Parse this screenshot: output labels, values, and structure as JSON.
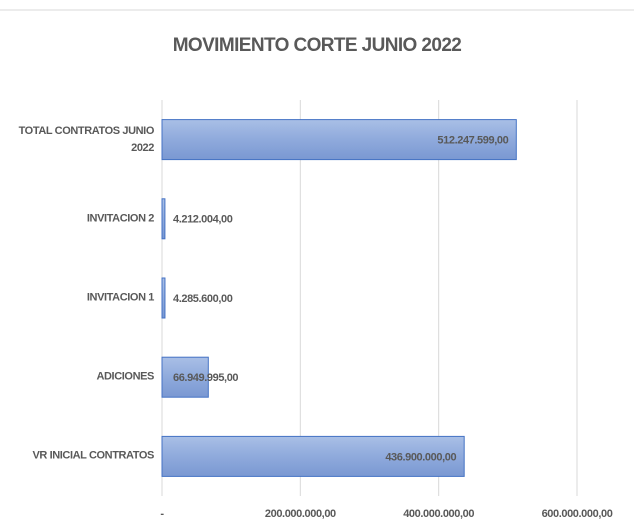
{
  "chart_data": {
    "type": "barh",
    "title": "MOVIMIENTO CORTE JUNIO 2022",
    "categories": [
      "TOTAL CONTRATOS JUNIO 2022",
      "INVITACION 2",
      "INVITACION 1",
      "ADICIONES",
      "VR INICIAL CONTRATOS"
    ],
    "values": [
      512247599,
      4212004,
      4285600,
      66949995,
      436900000
    ],
    "value_labels": [
      "512.247.599,00",
      "4.212.004,00",
      "4.285.600,00",
      "66.949.995,00",
      "436.900.000,00"
    ],
    "color": "#8faadc",
    "xlim": [
      0,
      600000000
    ],
    "xticks": [
      {
        "value": 0,
        "label": "-"
      },
      {
        "value": 200000000,
        "label": "200.000.000,00"
      },
      {
        "value": 400000000,
        "label": "400.000.000,00"
      },
      {
        "value": 600000000,
        "label": "600.000.000,00"
      }
    ],
    "grid": true
  }
}
